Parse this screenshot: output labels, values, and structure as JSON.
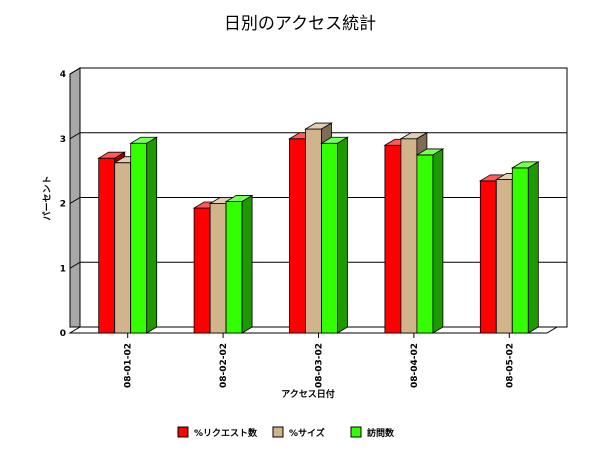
{
  "chart_data": {
    "type": "bar",
    "title": "日別のアクセス統計",
    "xlabel": "アクセス日付",
    "ylabel": "パーセント",
    "categories": [
      "08-01-02",
      "08-02-02",
      "08-03-02",
      "08-04-02",
      "08-05-02"
    ],
    "series": [
      {
        "name": "%リクエスト数",
        "color": "#ff0000",
        "values": [
          2.7,
          1.93,
          3.0,
          2.9,
          2.35
        ]
      },
      {
        "name": "%サイズ",
        "color": "#d2b48c",
        "values": [
          2.63,
          2.0,
          3.15,
          3.0,
          2.37
        ]
      },
      {
        "name": "訪問数",
        "color": "#33ff00",
        "values": [
          2.93,
          2.03,
          2.93,
          2.75,
          2.55
        ]
      }
    ],
    "ylim": [
      0,
      4
    ],
    "yticks": [
      "0",
      "1",
      "2",
      "3",
      "4"
    ],
    "grid": true,
    "legend_position": "bottom"
  }
}
